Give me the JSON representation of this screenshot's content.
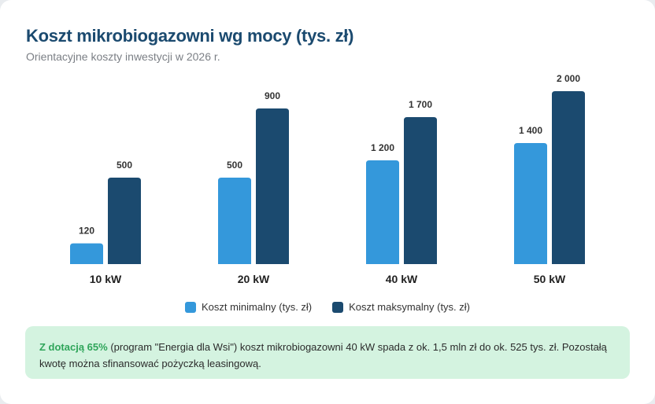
{
  "chart_data": {
    "type": "bar",
    "title": "Koszt mikrobiogazowni wg mocy (tys. zł)",
    "subtitle": "Orientacyjne koszty inwestycji w 2026 r.",
    "categories": [
      "10 kW",
      "20 kW",
      "40 kW",
      "50 kW"
    ],
    "series": [
      {
        "name": "Koszt minimalny (tys. zł)",
        "color": "#3498db",
        "values": [
          120,
          500,
          1200,
          1400
        ],
        "labels": [
          "120",
          "500",
          "1 200",
          "1 400"
        ]
      },
      {
        "name": "Koszt maksymalny (tys. zł)",
        "color": "#1b4a6f",
        "values": [
          500,
          900,
          1700,
          2000
        ],
        "labels": [
          "500",
          "900",
          "1 700",
          "2 000"
        ]
      }
    ],
    "grid": false,
    "legend": "bottom"
  },
  "note": {
    "highlight": "Z dotacją 65%",
    "text": " (program \"Energia dla Wsi\") koszt mikrobiogazowni 40 kW spada z ok. 1,5 mln zł do ok. 525 tys. zł. Pozostałą kwotę można sfinansować pożyczką leasingową."
  }
}
